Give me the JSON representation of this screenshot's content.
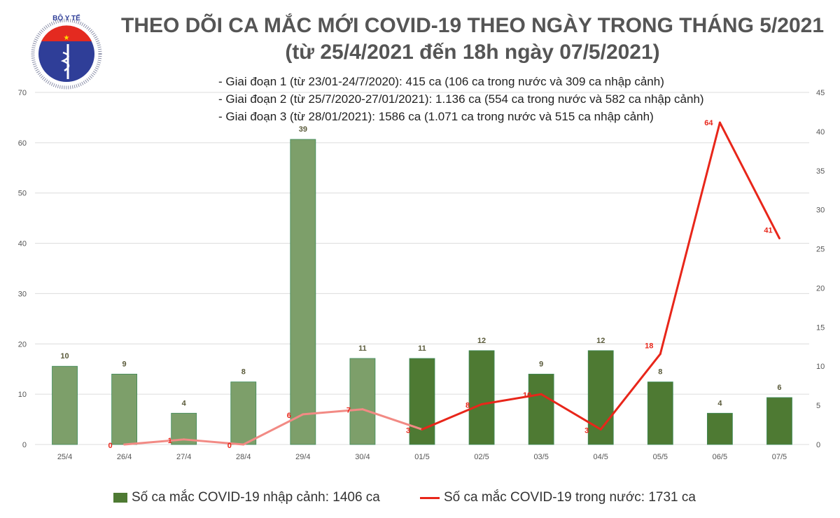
{
  "logo": {
    "text_top": "BỘ Y TẾ",
    "text_bottom": "MINISTRY OF HEALTH"
  },
  "chart_data": {
    "type": "bar+line",
    "title": "THEO DÕI CA MẮC MỚI COVID-19 THEO NGÀY TRONG THÁNG 5/2021",
    "subtitle": "(từ 25/4/2021 đến 18h ngày 07/5/2021)",
    "annotations": [
      "- Giai đoạn 1 (từ 23/01-24/7/2020): 415 ca (106 ca trong nước và 309 ca nhập cảnh)",
      "- Giai đoạn 2 (từ 25/7/2020-27/01/2021): 1.136 ca (554 ca trong nước và 582 ca nhập cảnh)",
      "- Giai đoạn 3 (từ 28/01/2021): 1586 ca (1.071 ca trong nước và 515 ca nhập cảnh)"
    ],
    "categories": [
      "25/4",
      "26/4",
      "27/4",
      "28/4",
      "29/4",
      "30/4",
      "01/5",
      "02/5",
      "03/5",
      "04/5",
      "05/5",
      "06/5",
      "07/5"
    ],
    "left_axis": {
      "range": [
        0,
        70
      ],
      "ticks": [
        0,
        10,
        20,
        30,
        40,
        50,
        60,
        70
      ]
    },
    "right_axis": {
      "range": [
        0,
        45
      ],
      "ticks": [
        0,
        5,
        10,
        15,
        20,
        25,
        30,
        35,
        40,
        45
      ]
    },
    "grid": true,
    "legend_position": "bottom",
    "series": [
      {
        "name": "Số ca mắc COVID-19 nhập cảnh: 1406 ca",
        "type": "bar",
        "axis": "right",
        "values": [
          10,
          9,
          4,
          8,
          39,
          11,
          11,
          12,
          9,
          12,
          8,
          4,
          6
        ],
        "colors": {
          "earlier": "#7d9f6a",
          "recent": "#4e7a33"
        }
      },
      {
        "name": "Số ca mắc COVID-19 trong nước: 1731 ca",
        "type": "line",
        "axis": "left",
        "values": [
          null,
          0,
          1,
          0,
          6,
          7,
          3,
          8,
          10,
          3,
          18,
          64,
          41
        ],
        "colors": {
          "earlier": "#f28a84",
          "recent": "#e8261a"
        }
      }
    ]
  }
}
